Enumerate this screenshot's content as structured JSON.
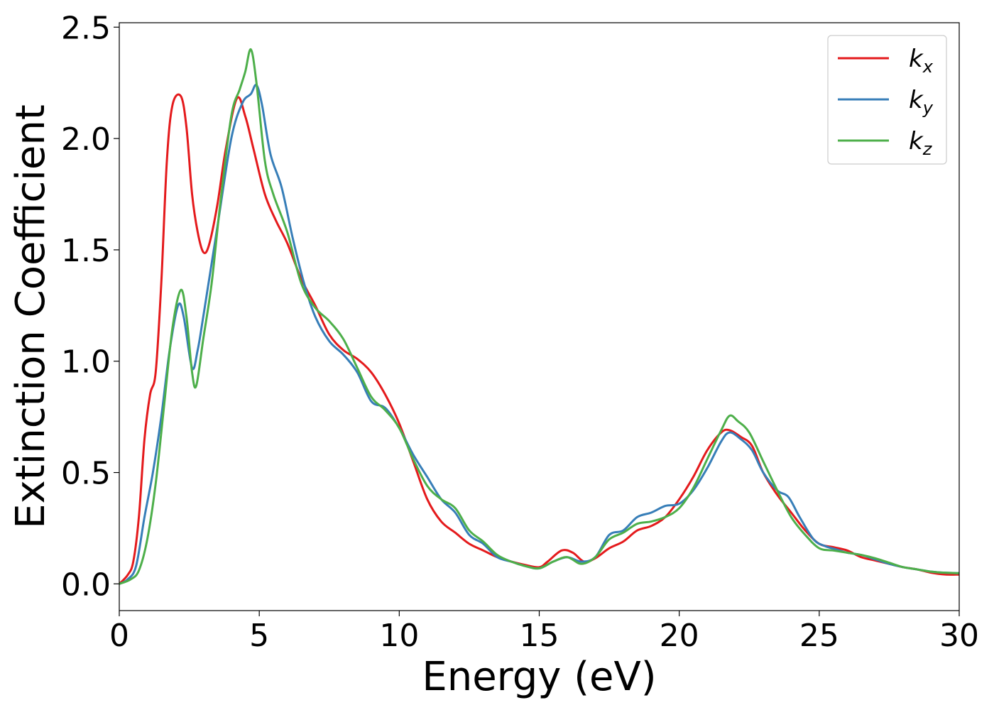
{
  "chart_data": {
    "type": "line",
    "title": "",
    "xlabel": "Energy (eV)",
    "ylabel": "Extinction Coefficient",
    "xlim": [
      0,
      30
    ],
    "ylim": [
      -0.12,
      2.52
    ],
    "xticks": [
      0,
      5,
      10,
      15,
      20,
      25,
      30
    ],
    "xtick_labels": [
      "0",
      "5",
      "10",
      "15",
      "20",
      "25",
      "30"
    ],
    "yticks": [
      0.0,
      0.5,
      1.0,
      1.5,
      2.0,
      2.5
    ],
    "ytick_labels": [
      "0.0",
      "0.5",
      "1.0",
      "1.5",
      "2.0",
      "2.5"
    ],
    "grid": false,
    "legend_position": "top-right",
    "series": [
      {
        "name": "k",
        "subscript": "x",
        "color": "#e41a1c",
        "points": [
          [
            0,
            0
          ],
          [
            0.3,
            0.04
          ],
          [
            0.5,
            0.1
          ],
          [
            0.7,
            0.3
          ],
          [
            0.9,
            0.65
          ],
          [
            1.1,
            0.85
          ],
          [
            1.3,
            0.95
          ],
          [
            1.5,
            1.35
          ],
          [
            1.7,
            1.9
          ],
          [
            1.9,
            2.15
          ],
          [
            2.2,
            2.19
          ],
          [
            2.4,
            2.05
          ],
          [
            2.6,
            1.75
          ],
          [
            2.8,
            1.58
          ],
          [
            3.0,
            1.49
          ],
          [
            3.2,
            1.52
          ],
          [
            3.5,
            1.7
          ],
          [
            3.8,
            1.95
          ],
          [
            4.2,
            2.18
          ],
          [
            4.5,
            2.1
          ],
          [
            4.8,
            1.95
          ],
          [
            5.2,
            1.75
          ],
          [
            5.6,
            1.63
          ],
          [
            6.0,
            1.53
          ],
          [
            6.5,
            1.37
          ],
          [
            7.0,
            1.25
          ],
          [
            7.5,
            1.12
          ],
          [
            8.0,
            1.05
          ],
          [
            8.5,
            1.01
          ],
          [
            9.0,
            0.95
          ],
          [
            9.5,
            0.85
          ],
          [
            10.0,
            0.72
          ],
          [
            10.5,
            0.55
          ],
          [
            11.0,
            0.38
          ],
          [
            11.5,
            0.28
          ],
          [
            12.0,
            0.23
          ],
          [
            12.5,
            0.18
          ],
          [
            13.0,
            0.15
          ],
          [
            13.5,
            0.12
          ],
          [
            14.0,
            0.1
          ],
          [
            14.5,
            0.085
          ],
          [
            15.0,
            0.075
          ],
          [
            15.3,
            0.1
          ],
          [
            15.8,
            0.15
          ],
          [
            16.2,
            0.14
          ],
          [
            16.6,
            0.1
          ],
          [
            17.0,
            0.115
          ],
          [
            17.5,
            0.16
          ],
          [
            18.0,
            0.19
          ],
          [
            18.5,
            0.24
          ],
          [
            19.0,
            0.26
          ],
          [
            19.5,
            0.3
          ],
          [
            20.0,
            0.38
          ],
          [
            20.5,
            0.48
          ],
          [
            21.0,
            0.6
          ],
          [
            21.5,
            0.68
          ],
          [
            21.8,
            0.69
          ],
          [
            22.2,
            0.66
          ],
          [
            22.6,
            0.62
          ],
          [
            23.0,
            0.5
          ],
          [
            23.5,
            0.4
          ],
          [
            24.0,
            0.32
          ],
          [
            24.5,
            0.24
          ],
          [
            25.0,
            0.18
          ],
          [
            25.5,
            0.165
          ],
          [
            26.0,
            0.15
          ],
          [
            26.5,
            0.12
          ],
          [
            27.0,
            0.105
          ],
          [
            27.5,
            0.09
          ],
          [
            28.0,
            0.075
          ],
          [
            28.5,
            0.065
          ],
          [
            29.0,
            0.05
          ],
          [
            29.5,
            0.042
          ],
          [
            30.0,
            0.042
          ]
        ]
      },
      {
        "name": "k",
        "subscript": "y",
        "color": "#377eb8",
        "points": [
          [
            0,
            0
          ],
          [
            0.3,
            0.02
          ],
          [
            0.6,
            0.08
          ],
          [
            0.9,
            0.3
          ],
          [
            1.2,
            0.5
          ],
          [
            1.5,
            0.75
          ],
          [
            1.8,
            1.05
          ],
          [
            2.1,
            1.25
          ],
          [
            2.3,
            1.2
          ],
          [
            2.6,
            0.97
          ],
          [
            2.8,
            1.05
          ],
          [
            3.0,
            1.2
          ],
          [
            3.5,
            1.6
          ],
          [
            4.0,
            2.0
          ],
          [
            4.4,
            2.16
          ],
          [
            4.7,
            2.2
          ],
          [
            4.9,
            2.24
          ],
          [
            5.1,
            2.15
          ],
          [
            5.4,
            1.93
          ],
          [
            5.8,
            1.78
          ],
          [
            6.2,
            1.55
          ],
          [
            6.6,
            1.35
          ],
          [
            7.0,
            1.2
          ],
          [
            7.5,
            1.09
          ],
          [
            8.0,
            1.03
          ],
          [
            8.5,
            0.95
          ],
          [
            9.0,
            0.82
          ],
          [
            9.5,
            0.79
          ],
          [
            10.0,
            0.7
          ],
          [
            10.5,
            0.58
          ],
          [
            11.0,
            0.48
          ],
          [
            11.5,
            0.38
          ],
          [
            12.0,
            0.32
          ],
          [
            12.5,
            0.22
          ],
          [
            13.0,
            0.18
          ],
          [
            13.5,
            0.12
          ],
          [
            14.0,
            0.1
          ],
          [
            14.5,
            0.08
          ],
          [
            15.0,
            0.07
          ],
          [
            15.5,
            0.1
          ],
          [
            16.0,
            0.12
          ],
          [
            16.5,
            0.1
          ],
          [
            17.0,
            0.12
          ],
          [
            17.5,
            0.22
          ],
          [
            18.0,
            0.24
          ],
          [
            18.5,
            0.3
          ],
          [
            19.0,
            0.32
          ],
          [
            19.5,
            0.35
          ],
          [
            20.0,
            0.36
          ],
          [
            20.5,
            0.42
          ],
          [
            21.0,
            0.52
          ],
          [
            21.5,
            0.64
          ],
          [
            21.8,
            0.68
          ],
          [
            22.2,
            0.65
          ],
          [
            22.6,
            0.6
          ],
          [
            23.0,
            0.5
          ],
          [
            23.5,
            0.42
          ],
          [
            23.9,
            0.39
          ],
          [
            24.3,
            0.3
          ],
          [
            24.8,
            0.2
          ],
          [
            25.2,
            0.17
          ],
          [
            25.6,
            0.155
          ],
          [
            26.0,
            0.14
          ],
          [
            26.5,
            0.13
          ],
          [
            27.0,
            0.11
          ],
          [
            27.5,
            0.09
          ],
          [
            28.0,
            0.075
          ],
          [
            28.5,
            0.065
          ],
          [
            29.0,
            0.055
          ],
          [
            29.5,
            0.05
          ],
          [
            30.0,
            0.048
          ]
        ]
      },
      {
        "name": "k",
        "subscript": "z",
        "color": "#4daf4a",
        "points": [
          [
            0,
            0
          ],
          [
            0.4,
            0.02
          ],
          [
            0.7,
            0.06
          ],
          [
            1.0,
            0.2
          ],
          [
            1.3,
            0.45
          ],
          [
            1.6,
            0.8
          ],
          [
            1.9,
            1.15
          ],
          [
            2.2,
            1.32
          ],
          [
            2.4,
            1.2
          ],
          [
            2.6,
            0.95
          ],
          [
            2.75,
            0.89
          ],
          [
            3.0,
            1.1
          ],
          [
            3.3,
            1.35
          ],
          [
            3.6,
            1.7
          ],
          [
            4.0,
            2.1
          ],
          [
            4.3,
            2.22
          ],
          [
            4.5,
            2.3
          ],
          [
            4.7,
            2.4
          ],
          [
            4.9,
            2.25
          ],
          [
            5.2,
            1.9
          ],
          [
            5.5,
            1.75
          ],
          [
            6.0,
            1.58
          ],
          [
            6.5,
            1.35
          ],
          [
            7.0,
            1.24
          ],
          [
            7.5,
            1.18
          ],
          [
            8.0,
            1.1
          ],
          [
            8.5,
            0.97
          ],
          [
            9.0,
            0.84
          ],
          [
            9.5,
            0.78
          ],
          [
            10.0,
            0.7
          ],
          [
            10.5,
            0.56
          ],
          [
            11.0,
            0.44
          ],
          [
            11.5,
            0.38
          ],
          [
            12.0,
            0.34
          ],
          [
            12.5,
            0.24
          ],
          [
            13.0,
            0.19
          ],
          [
            13.5,
            0.13
          ],
          [
            14.0,
            0.1
          ],
          [
            14.5,
            0.08
          ],
          [
            15.0,
            0.07
          ],
          [
            15.5,
            0.1
          ],
          [
            16.0,
            0.12
          ],
          [
            16.5,
            0.09
          ],
          [
            17.0,
            0.12
          ],
          [
            17.5,
            0.2
          ],
          [
            18.0,
            0.23
          ],
          [
            18.5,
            0.27
          ],
          [
            19.0,
            0.28
          ],
          [
            19.5,
            0.3
          ],
          [
            20.0,
            0.34
          ],
          [
            20.5,
            0.43
          ],
          [
            21.0,
            0.56
          ],
          [
            21.5,
            0.69
          ],
          [
            21.8,
            0.755
          ],
          [
            22.1,
            0.73
          ],
          [
            22.5,
            0.68
          ],
          [
            23.0,
            0.55
          ],
          [
            23.5,
            0.42
          ],
          [
            24.0,
            0.3
          ],
          [
            24.5,
            0.22
          ],
          [
            25.0,
            0.16
          ],
          [
            25.5,
            0.15
          ],
          [
            26.0,
            0.14
          ],
          [
            26.5,
            0.13
          ],
          [
            27.0,
            0.115
          ],
          [
            27.5,
            0.095
          ],
          [
            28.0,
            0.075
          ],
          [
            28.5,
            0.065
          ],
          [
            29.0,
            0.055
          ],
          [
            29.5,
            0.05
          ],
          [
            30.0,
            0.048
          ]
        ]
      }
    ]
  }
}
